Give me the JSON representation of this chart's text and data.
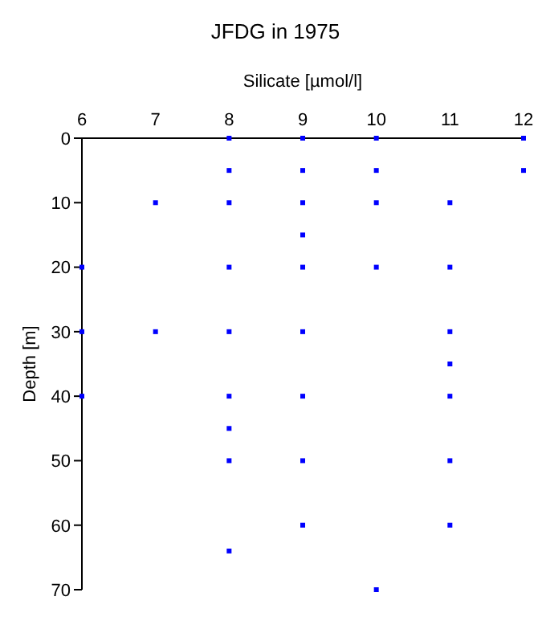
{
  "chart_data": {
    "type": "scatter",
    "title": "JFDG in 1975",
    "xlabel": "Silicate [µmol/l]",
    "ylabel": "Depth [m]",
    "x": [
      8,
      8,
      8,
      8,
      8,
      8,
      8,
      8,
      8,
      9,
      9,
      9,
      9,
      9,
      9,
      9,
      9,
      9,
      10,
      10,
      10,
      10,
      10,
      11,
      11,
      11,
      11,
      11,
      11,
      11,
      12,
      12,
      7,
      7,
      6,
      6,
      6
    ],
    "values": [
      0,
      5,
      10,
      20,
      30,
      40,
      45,
      50,
      64,
      0,
      5,
      10,
      15,
      20,
      30,
      40,
      50,
      60,
      0,
      5,
      10,
      20,
      70,
      10,
      20,
      30,
      35,
      40,
      50,
      60,
      0,
      5,
      10,
      30,
      20,
      30,
      40
    ],
    "color": "#0000ff",
    "marker": "square",
    "xlim": [
      6,
      12
    ],
    "xticks": [
      6,
      7,
      8,
      9,
      10,
      11,
      12
    ],
    "ylim": [
      70,
      0
    ],
    "yticks": [
      0,
      10,
      20,
      30,
      40,
      50,
      60,
      70
    ],
    "grid": false,
    "legend": false
  }
}
